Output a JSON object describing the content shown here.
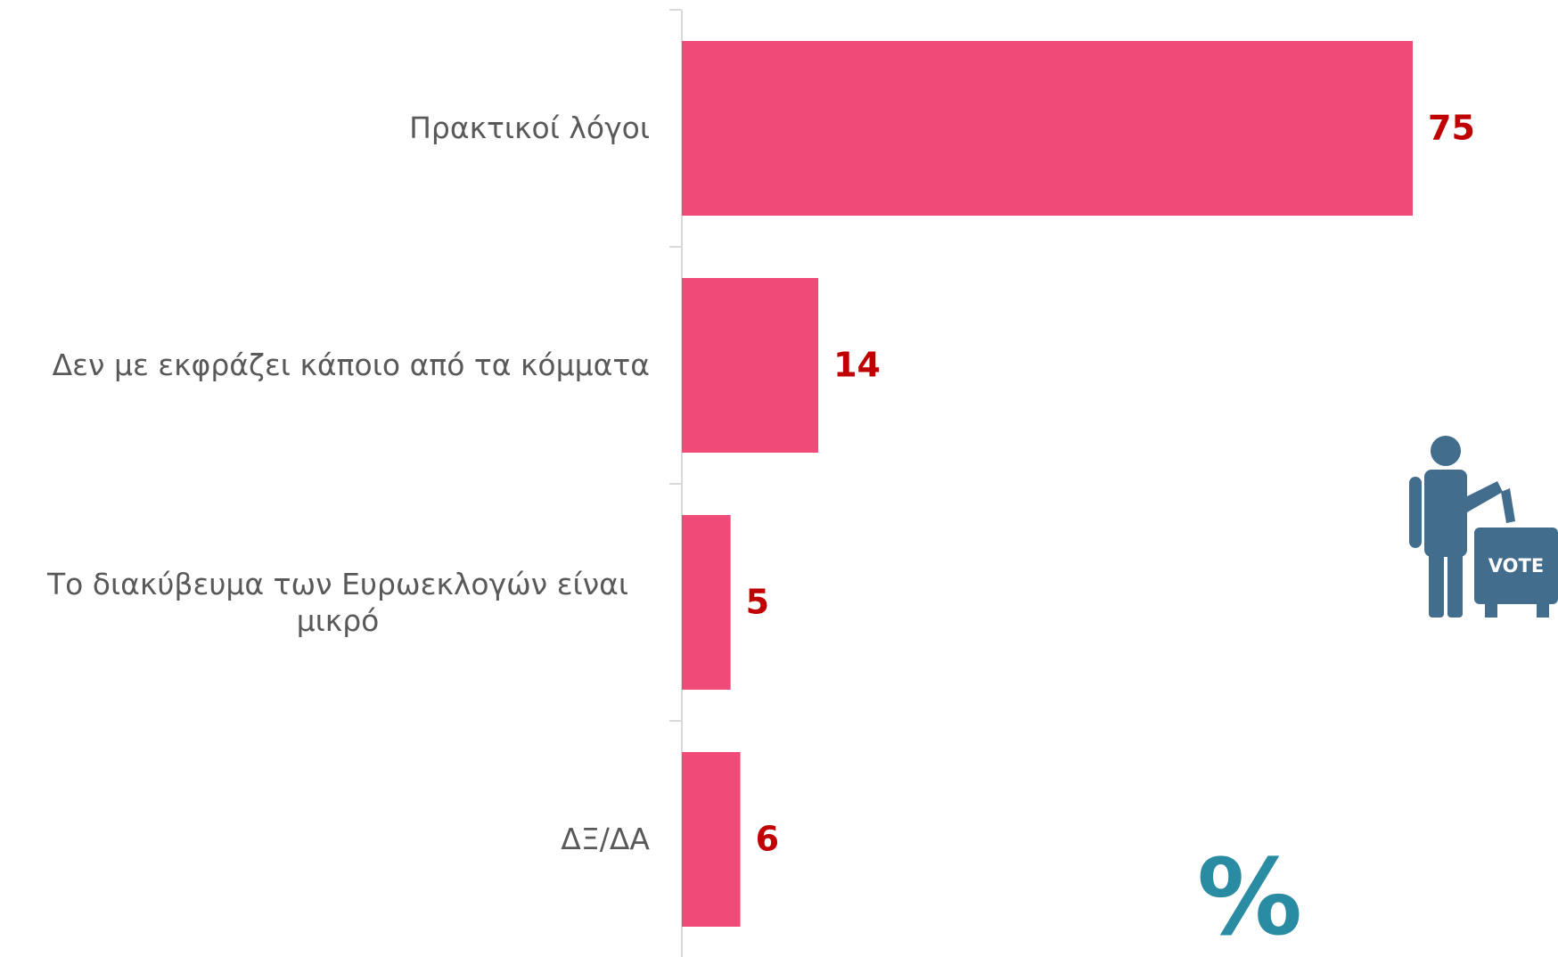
{
  "chart_data": {
    "type": "bar",
    "orientation": "horizontal",
    "categories": [
      "Πρακτικοί λόγοι",
      "Δεν με εκφράζει κάποιο από τα κόμματα",
      "Το διακύβευμα των Ευρωεκλογών είναι μικρό",
      "ΔΞ/ΔΑ"
    ],
    "values": [
      75,
      14,
      5,
      6
    ],
    "color": "#ef4a78",
    "value_label_color": "#c00000",
    "annotation": "%",
    "icon_label": "VOTE"
  }
}
